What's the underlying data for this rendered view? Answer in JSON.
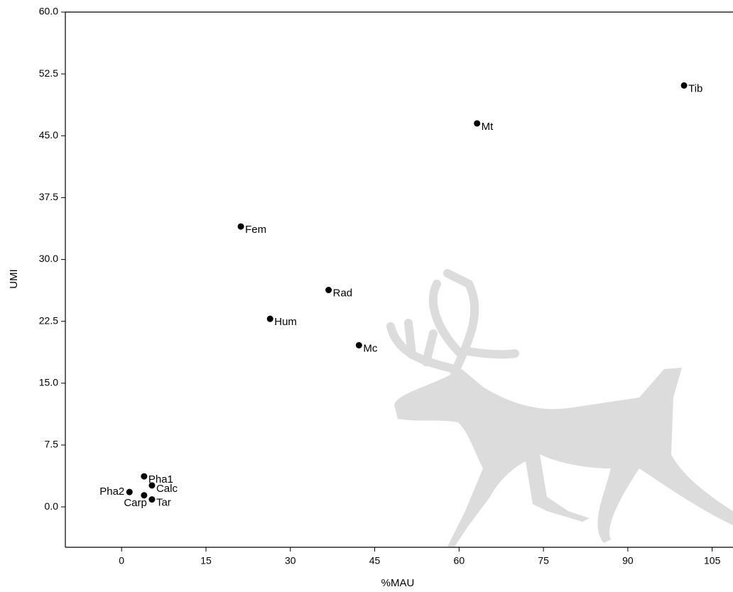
{
  "chart_data": {
    "type": "scatter",
    "x_label": "%MAU",
    "y_label": "UMI",
    "x": [
      100,
      63.2,
      21.2,
      36.8,
      26.4,
      42.2,
      4.0,
      5.4,
      1.4,
      4.0,
      5.4
    ],
    "y": [
      51.1,
      46.5,
      34.0,
      26.3,
      22.8,
      19.6,
      3.7,
      2.6,
      1.8,
      1.4,
      0.9
    ],
    "labels": [
      "Tib",
      "Mt",
      "Fem",
      "Rad",
      "Hum",
      "Mc",
      "Pha1",
      "Calc",
      "Pha2",
      "Carp",
      "Tar"
    ],
    "color": "#000000",
    "xlim": [
      -10,
      108.7
    ],
    "ylim": [
      -4.9,
      60
    ],
    "xticks": [
      0,
      15,
      30,
      45,
      60,
      75,
      90,
      105
    ],
    "yticks": [
      {
        "value": 0,
        "label": "0.0"
      },
      7.5,
      {
        "value": 15,
        "label": "15.0"
      },
      22.5,
      {
        "value": 30,
        "label": "30.0"
      },
      37.5,
      {
        "value": 45,
        "label": "45.0"
      },
      52.5,
      {
        "value": 60,
        "label": "60.0"
      }
    ]
  }
}
